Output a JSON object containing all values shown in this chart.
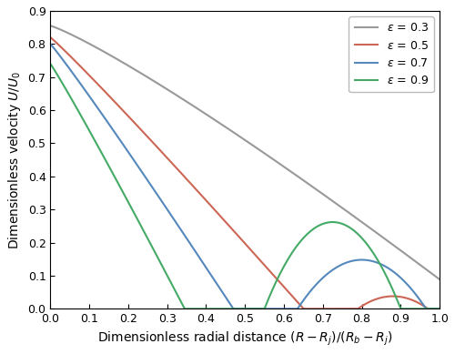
{
  "xlabel": "Dimensionless radial distance $(R-R_j)/(R_b-R_j)$",
  "ylabel": "Dimensionless velocity $U/U_0$",
  "xlim": [
    0.0,
    1.0
  ],
  "ylim": [
    0.0,
    0.9
  ],
  "xticks": [
    0.0,
    0.1,
    0.2,
    0.3,
    0.4,
    0.5,
    0.6,
    0.7,
    0.8,
    0.9,
    1.0
  ],
  "yticks": [
    0.0,
    0.1,
    0.2,
    0.3,
    0.4,
    0.5,
    0.6,
    0.7,
    0.8,
    0.9
  ],
  "colors": [
    "#999999",
    "#cc6655",
    "#5588bb",
    "#44aa66"
  ],
  "linewidth": 1.5,
  "figsize": [
    5.0,
    3.89
  ],
  "dpi": 100,
  "curve_params": [
    {
      "eps": 0.3,
      "U0": 0.855,
      "zero1": 1.1,
      "pow1": 1.15,
      "wa": 0.0,
      "wp": 0.95,
      "ww": 0.1,
      "end_taper": false
    },
    {
      "eps": 0.5,
      "U0": 0.82,
      "zero1": 0.65,
      "pow1": 1.05,
      "wa": 0.038,
      "wp": 0.88,
      "ww": 0.09,
      "end_taper": true
    },
    {
      "eps": 0.7,
      "U0": 0.8,
      "zero1": 0.47,
      "pow1": 1.05,
      "wa": 0.148,
      "wp": 0.8,
      "ww": 0.165,
      "end_taper": true
    },
    {
      "eps": 0.9,
      "U0": 0.74,
      "zero1": 0.345,
      "pow1": 1.05,
      "wa": 0.262,
      "wp": 0.725,
      "ww": 0.175,
      "end_taper": true
    }
  ]
}
